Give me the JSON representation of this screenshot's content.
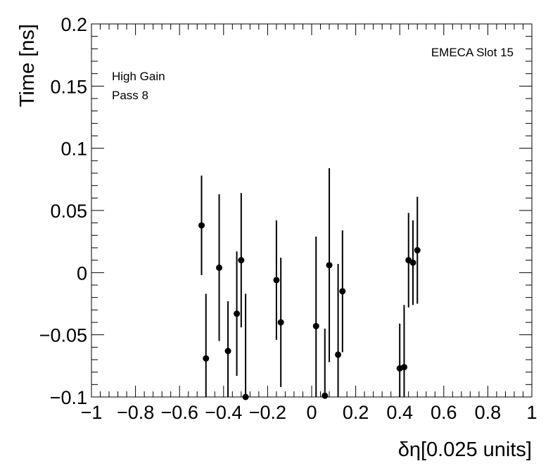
{
  "chart_data": {
    "type": "scatter",
    "title": "",
    "xlabel": "δη[0.025 units]",
    "ylabel": "Time [ns]",
    "xlim": [
      -1,
      1
    ],
    "ylim": [
      -0.1,
      0.2
    ],
    "x_ticks": [
      -1,
      -0.8,
      -0.6,
      -0.4,
      -0.2,
      0,
      0.2,
      0.4,
      0.6,
      0.8,
      1
    ],
    "x_tick_labels": [
      "−1",
      "−0.8",
      "−0.6",
      "−0.4",
      "−0.2",
      "0",
      "0.2",
      "0.4",
      "0.6",
      "0.8",
      "1"
    ],
    "y_ticks": [
      -0.1,
      -0.05,
      0,
      0.05,
      0.1,
      0.15,
      0.2
    ],
    "y_tick_labels": [
      "−0.1",
      "−0.05",
      "0",
      "0.05",
      "0.1",
      "0.15",
      "0.2"
    ],
    "annotations": {
      "top_right": "EMECA Slot 15",
      "line1": "High Gain",
      "line2": "Pass 8"
    },
    "points": [
      {
        "x": -0.5,
        "y": 0.038,
        "err": 0.04
      },
      {
        "x": -0.48,
        "y": -0.069,
        "err": 0.052
      },
      {
        "x": -0.42,
        "y": 0.004,
        "err": 0.059
      },
      {
        "x": -0.38,
        "y": -0.063,
        "err": 0.04
      },
      {
        "x": -0.34,
        "y": -0.033,
        "err": 0.05
      },
      {
        "x": -0.32,
        "y": 0.01,
        "err": 0.054
      },
      {
        "x": -0.3,
        "y": -0.1,
        "err": 0.083
      },
      {
        "x": -0.16,
        "y": -0.006,
        "err": 0.048
      },
      {
        "x": -0.14,
        "y": -0.04,
        "err": 0.052
      },
      {
        "x": 0.02,
        "y": -0.043,
        "err": 0.072
      },
      {
        "x": 0.06,
        "y": -0.099,
        "err": 0.054
      },
      {
        "x": 0.08,
        "y": 0.006,
        "err": 0.078
      },
      {
        "x": 0.12,
        "y": -0.066,
        "err": 0.073
      },
      {
        "x": 0.14,
        "y": -0.015,
        "err": 0.049
      },
      {
        "x": 0.4,
        "y": -0.077,
        "err": 0.036
      },
      {
        "x": 0.42,
        "y": -0.076,
        "err": 0.05
      },
      {
        "x": 0.44,
        "y": 0.01,
        "err": 0.038
      },
      {
        "x": 0.46,
        "y": 0.008,
        "err": 0.034
      },
      {
        "x": 0.48,
        "y": 0.018,
        "err": 0.043
      }
    ]
  }
}
